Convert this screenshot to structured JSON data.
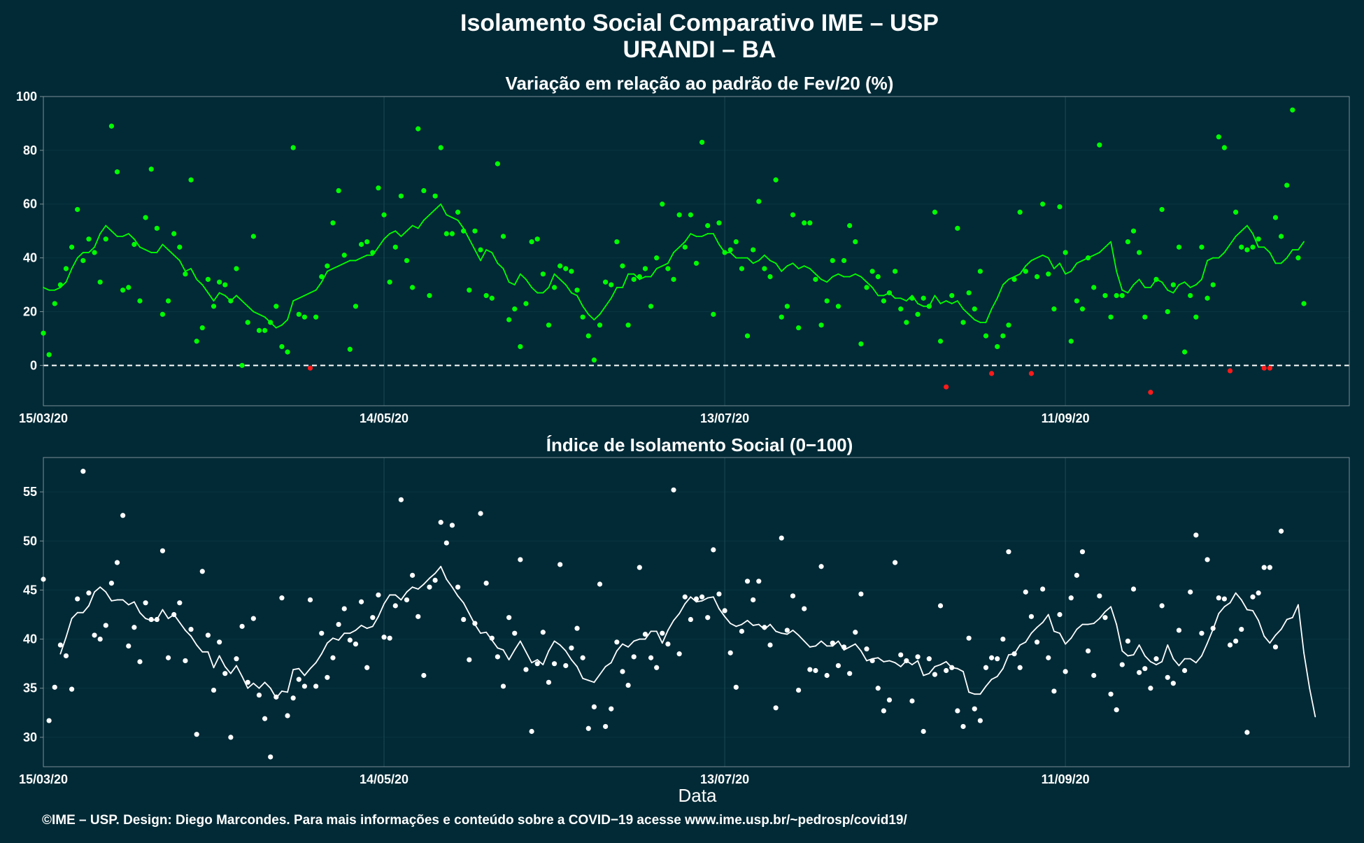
{
  "header": {
    "title": "Isolamento Social Comparativo IME – USP",
    "subtitle": "URANDI – BA"
  },
  "footer": {
    "text": "©IME – USP. Design: Diego Marcondes. Para mais informações e conteúdo sobre a COVID−19 acesse www.ime.usp.br/~pedrosp/covid19/"
  },
  "colors": {
    "background": "#012a36",
    "grid": "#1d4a54",
    "frame": "#7d8f96",
    "positive": "#00ff00",
    "negative": "#ff1a1a",
    "index": "#ffffff"
  },
  "chart_data": [
    {
      "type": "scatter",
      "title": "Variação em relação ao padrão de Fev/20 (%)",
      "xlabel": "",
      "ylabel": "",
      "x_start": "2020-03-15",
      "x_end": "2020-10-31",
      "xlim": [
        "2020-03-15",
        "2020-10-31"
      ],
      "ylim": [
        -15,
        100
      ],
      "yticks": [
        0,
        20,
        40,
        60,
        80,
        100
      ],
      "xtick_dates": [
        "2020-03-15",
        "2020-05-14",
        "2020-07-13",
        "2020-09-11"
      ],
      "xtick_labels": [
        "15/03/20",
        "14/05/20",
        "13/07/20",
        "11/09/20"
      ],
      "reference_line": 0,
      "grid": true,
      "series": [
        {
          "type": "scatter",
          "values": [
            12,
            4,
            23,
            30,
            36,
            44,
            58,
            39,
            47,
            42,
            31,
            47,
            89,
            72,
            28,
            29,
            45,
            24,
            55,
            73,
            51,
            19,
            24,
            49,
            44,
            34,
            69,
            9,
            14,
            32,
            22,
            31,
            30,
            24,
            36,
            0,
            16,
            48,
            13,
            13,
            16,
            22,
            7,
            5,
            81,
            19,
            18,
            -1,
            18,
            33,
            37,
            53,
            65,
            41,
            6,
            22,
            45,
            46,
            42,
            66,
            56,
            31,
            44,
            63,
            39,
            29,
            88,
            65,
            26,
            63,
            81,
            49,
            49,
            57,
            50,
            28,
            50,
            43,
            26,
            25,
            75,
            48,
            17,
            21,
            7,
            23,
            46,
            47,
            34,
            15,
            29,
            37,
            36,
            35,
            28,
            18,
            11,
            2,
            15,
            31,
            30,
            46,
            37,
            15,
            32,
            33,
            36,
            22,
            40,
            60,
            36,
            32,
            56,
            44,
            56,
            38,
            83,
            52,
            19,
            53,
            42,
            43,
            46,
            36,
            11,
            43,
            61,
            36,
            33,
            69,
            18,
            22,
            56,
            14,
            53,
            53,
            32,
            15,
            24,
            39,
            22,
            39,
            52,
            46,
            8,
            29,
            35,
            33,
            24,
            27,
            35,
            21,
            16,
            25,
            19,
            25,
            22,
            57,
            9,
            -8,
            26,
            51,
            16,
            27,
            21,
            35,
            11,
            -3,
            7,
            11,
            15,
            32,
            57,
            35,
            -3,
            33,
            60,
            34,
            21,
            59,
            42,
            9,
            24,
            21,
            40,
            29,
            82,
            26,
            18,
            26,
            26,
            46,
            50,
            42,
            18,
            -10,
            32,
            58,
            20,
            30,
            44,
            5,
            26,
            18,
            44,
            25,
            30,
            85,
            81,
            -2,
            57,
            44,
            43,
            44,
            47,
            -1,
            -1,
            55,
            48,
            67,
            95,
            40,
            23
          ]
        },
        {
          "type": "line",
          "values": [
            29,
            28,
            28,
            29,
            31,
            36,
            40,
            42,
            42,
            44,
            49,
            52,
            50,
            48,
            48,
            49,
            47,
            44,
            43,
            42,
            42,
            45,
            43,
            41,
            39,
            35,
            36,
            32,
            30,
            27,
            24,
            27,
            26,
            24,
            26,
            24,
            22,
            20,
            19,
            18,
            16,
            14,
            15,
            17,
            24,
            25,
            26,
            27,
            28,
            31,
            35,
            36,
            37,
            38,
            39,
            39,
            40,
            41,
            41,
            44,
            47,
            49,
            50,
            48,
            50,
            52,
            51,
            54,
            56,
            58,
            60,
            56,
            55,
            54,
            51,
            47,
            43,
            39,
            43,
            42,
            38,
            36,
            31,
            30,
            34,
            32,
            29,
            27,
            27,
            29,
            34,
            32,
            30,
            27,
            26,
            22,
            19,
            17,
            19,
            22,
            25,
            29,
            29,
            34,
            34,
            32,
            33,
            33,
            36,
            37,
            38,
            42,
            44,
            46,
            49,
            48,
            48,
            49,
            49,
            45,
            42,
            42,
            40,
            40,
            40,
            38,
            39,
            41,
            39,
            38,
            35,
            37,
            38,
            36,
            37,
            36,
            34,
            32,
            31,
            33,
            34,
            33,
            33,
            34,
            33,
            31,
            29,
            26,
            26,
            27,
            25,
            25,
            24,
            26,
            23,
            22,
            22,
            26,
            23,
            24,
            23,
            24,
            21,
            19,
            17,
            16,
            16,
            21,
            25,
            30,
            32,
            33,
            34,
            37,
            39,
            40,
            41,
            40,
            36,
            38,
            34,
            35,
            38,
            39,
            40,
            41,
            42,
            44,
            46,
            35,
            28,
            27,
            30,
            32,
            29,
            29,
            32,
            31,
            28,
            27,
            30,
            31,
            29,
            30,
            32,
            39,
            40,
            40,
            42,
            45,
            48,
            50,
            52,
            49,
            44,
            44,
            42,
            38,
            38,
            40,
            43,
            43,
            46
          ]
        }
      ]
    },
    {
      "type": "scatter",
      "title": "Índice de Isolamento Social (0−100)",
      "xlabel": "Data",
      "ylabel": "",
      "x_start": "2020-03-15",
      "x_end": "2020-10-31",
      "xlim": [
        "2020-03-15",
        "2020-10-31"
      ],
      "ylim": [
        27,
        58.5
      ],
      "yticks": [
        30,
        35,
        40,
        45,
        50,
        55
      ],
      "xtick_dates": [
        "2020-03-15",
        "2020-05-14",
        "2020-07-13",
        "2020-09-11"
      ],
      "xtick_labels": [
        "15/03/20",
        "14/05/20",
        "13/07/20",
        "11/09/20"
      ],
      "grid": true,
      "series": [
        {
          "type": "scatter",
          "values": [
            46.1,
            31.7,
            35.1,
            39.4,
            38.3,
            34.9,
            44.1,
            57.1,
            44.7,
            40.4,
            40.0,
            41.4,
            45.7,
            47.8,
            52.6,
            39.3,
            41.2,
            37.7,
            43.7,
            42.0,
            42.0,
            49.0,
            38.1,
            42.5,
            43.7,
            37.8,
            41.0,
            30.3,
            46.9,
            40.4,
            34.8,
            39.7,
            36.5,
            30.0,
            38.0,
            41.3,
            35.6,
            42.1,
            34.3,
            31.9,
            28.0,
            34.1,
            44.2,
            32.2,
            34.0,
            35.9,
            35.2,
            44.0,
            35.2,
            40.6,
            36.1,
            38.1,
            41.5,
            43.1,
            39.9,
            39.5,
            43.8,
            37.1,
            42.2,
            44.5,
            40.2,
            40.1,
            43.4,
            54.2,
            44.0,
            46.5,
            42.3,
            36.3,
            45.3,
            46.0,
            51.9,
            49.8,
            51.6,
            45.3,
            42.0,
            37.9,
            41.6,
            52.8,
            45.7,
            40.1,
            38.2,
            35.2,
            42.2,
            40.6,
            48.1,
            36.9,
            30.6,
            37.5,
            40.7,
            35.6,
            37.5,
            47.6,
            37.3,
            39.1,
            41.1,
            38.1,
            30.9,
            33.1,
            45.6,
            31.1,
            32.9,
            39.7,
            36.7,
            35.3,
            38.2,
            47.3,
            40.5,
            38.1,
            37.1,
            40.6,
            39.5,
            55.2,
            38.5,
            44.3,
            42.0,
            44.1,
            44.3,
            42.2,
            49.1,
            44.6,
            42.9,
            38.6,
            35.1,
            40.8,
            45.9,
            44.0,
            45.9,
            41.2,
            39.4,
            33.0,
            50.3,
            40.9,
            44.4,
            34.8,
            43.1,
            36.9,
            36.8,
            47.4,
            36.3,
            39.6,
            37.3,
            39.2,
            36.5,
            40.7,
            44.6,
            39.0,
            37.8,
            35.0,
            32.7,
            33.8,
            47.8,
            38.4,
            37.8,
            33.7,
            38.2,
            30.6,
            38.0,
            36.4,
            43.4,
            36.8,
            37.1,
            32.7,
            31.1,
            40.1,
            32.9,
            31.7,
            37.1,
            38.1,
            38.0,
            40.0,
            48.9,
            38.5,
            37.1,
            44.8,
            42.3,
            39.7,
            45.1,
            38.1,
            34.7,
            42.5,
            36.7,
            44.2,
            46.5,
            48.9,
            38.8,
            36.3,
            44.4,
            42.2,
            34.4,
            32.8,
            37.4,
            39.8,
            45.1,
            36.6,
            37.0,
            35.0,
            38.0,
            43.4,
            36.1,
            35.5,
            40.9,
            36.8,
            44.8,
            50.6,
            40.6,
            48.1,
            41.1,
            44.2,
            44.1,
            39.4,
            39.8,
            41.0,
            30.5,
            44.3,
            44.7,
            47.3,
            47.3,
            39.2,
            51.0
          ]
        },
        {
          "type": "line",
          "values": [
            null,
            null,
            null,
            38.5,
            40.2,
            42.1,
            42.7,
            42.7,
            43.4,
            44.8,
            45.3,
            44.8,
            43.9,
            44.0,
            44.0,
            43.5,
            43.8,
            42.7,
            42.1,
            41.9,
            42.0,
            43.0,
            42.1,
            42.5,
            41.7,
            40.9,
            40.3,
            39.4,
            38.7,
            38.7,
            37.1,
            38.3,
            37.2,
            36.5,
            37.3,
            36.2,
            35.0,
            35.5,
            35.0,
            35.6,
            35.0,
            34.0,
            34.7,
            34.6,
            36.9,
            37.0,
            36.3,
            37.0,
            37.6,
            38.5,
            39.6,
            40.1,
            39.9,
            40.6,
            40.6,
            40.9,
            41.4,
            41.1,
            41.3,
            42.3,
            43.6,
            44.5,
            44.5,
            44.0,
            44.8,
            45.3,
            45.1,
            45.6,
            46.2,
            46.7,
            47.4,
            46.1,
            45.3,
            44.4,
            43.7,
            42.6,
            41.5,
            40.6,
            40.7,
            39.9,
            39.1,
            38.9,
            37.9,
            38.9,
            39.8,
            38.7,
            37.6,
            37.9,
            37.4,
            38.8,
            39.8,
            39.4,
            38.8,
            37.9,
            37.2,
            36.0,
            35.8,
            35.6,
            36.4,
            37.2,
            37.6,
            38.8,
            39.5,
            39.2,
            39.8,
            40.0,
            40.0,
            40.8,
            40.8,
            39.6,
            40.9,
            41.9,
            42.6,
            43.6,
            44.3,
            43.8,
            43.9,
            44.2,
            44.3,
            43.1,
            42.3,
            41.6,
            41.3,
            41.5,
            41.9,
            41.4,
            41.5,
            41.0,
            41.5,
            40.8,
            40.6,
            40.5,
            40.9,
            40.4,
            39.8,
            39.2,
            39.3,
            39.8,
            39.3,
            39.3,
            39.8,
            38.9,
            39.2,
            39.5,
            38.8,
            37.8,
            38.0,
            38.1,
            37.7,
            37.8,
            37.6,
            37.2,
            37.8,
            37.4,
            37.8,
            36.3,
            36.5,
            37.2,
            37.4,
            37.7,
            37.1,
            37.0,
            36.7,
            34.6,
            34.4,
            34.4,
            35.2,
            35.9,
            36.2,
            37.0,
            38.4,
            38.5,
            39.4,
            39.7,
            40.6,
            41.2,
            41.7,
            42.5,
            40.8,
            40.6,
            39.5,
            40.1,
            41.0,
            41.5,
            41.5,
            41.6,
            42.1,
            42.8,
            43.3,
            41.5,
            38.8,
            38.3,
            38.4,
            39.4,
            38.3,
            37.7,
            37.4,
            37.7,
            39.4,
            38.0,
            37.3,
            38.0,
            38.0,
            37.6,
            38.3,
            39.6,
            41.0,
            42.6,
            43.3,
            43.7,
            44.7,
            44.0,
            43.0,
            42.9,
            41.9,
            40.3,
            39.6,
            40.4,
            41.0,
            42.0,
            42.2,
            43.5,
            38.6,
            35.0,
            32.1
          ]
        }
      ]
    }
  ]
}
